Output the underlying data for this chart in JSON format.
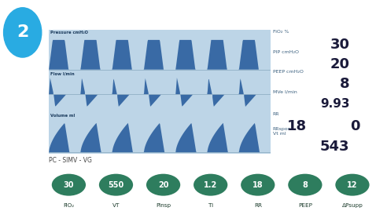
{
  "title": "PC - SIMV - VG",
  "number": "2",
  "number_bg": "#29abe2",
  "header_bg": "#2b5f8e",
  "chart_bg": "#bdd5e7",
  "bottom_bg": "#8ec9b0",
  "circle_color": "#2e7d5e",
  "params_right": [
    {
      "label": "FiO₂ %",
      "value": "30"
    },
    {
      "label": "PIP cmH₂O",
      "value": "20"
    },
    {
      "label": "PEEP cmH₂O",
      "value": "8"
    },
    {
      "label": "MVe l/min",
      "value": "9.93"
    },
    {
      "label": "RR",
      "value": "18",
      "label2": "RRspon",
      "value2": "0"
    },
    {
      "label": "Vt ml",
      "value": "543"
    }
  ],
  "bottom_circles": [
    {
      "value": "30",
      "label": "FiO₂"
    },
    {
      "value": "550",
      "label": "VT"
    },
    {
      "value": "20",
      "label": "Pinsp"
    },
    {
      "value": "1.2",
      "label": "Ti"
    },
    {
      "value": "18",
      "label": "RR"
    },
    {
      "value": "8",
      "label": "PEEP"
    },
    {
      "value": "12",
      "label": "ΔPsupp"
    }
  ],
  "waveform_labels": [
    "Pressure cmH₂O",
    "Flow l/min",
    "Volume ml"
  ],
  "wave_fill": "#2b5f9e",
  "baseline_color": "#90afc5"
}
